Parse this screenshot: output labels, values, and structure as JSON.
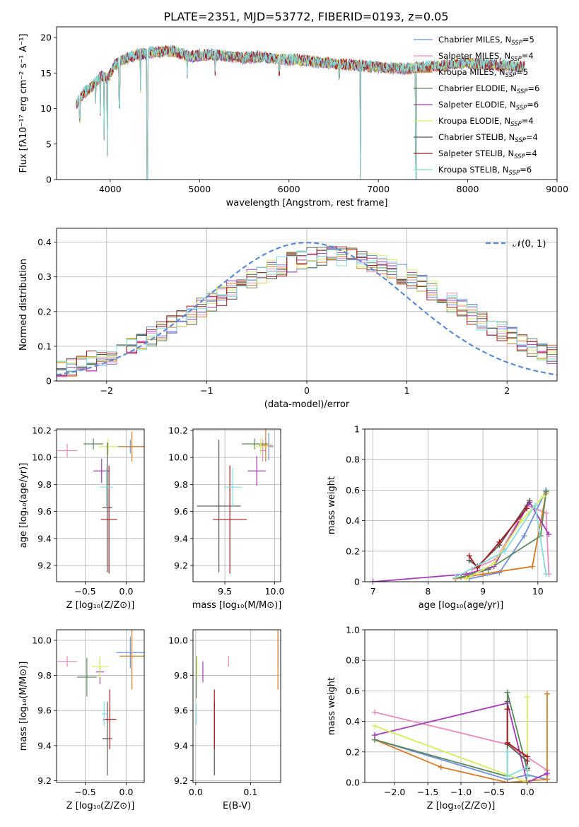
{
  "figure_title": "PLATE=2351, MJD=53772, FIBERID=0193, z=0.05",
  "colors": {
    "grid": "#b0b0b0"
  },
  "series_styles": [
    {
      "key": "chabrier_miles",
      "label_base": "Chabrier MILES, N",
      "n_ssp": "5",
      "color": "#6d8fdc"
    },
    {
      "key": "salpeter_miles",
      "label_base": "Salpeter MILES, N",
      "n_ssp": "4",
      "color": "#e98bbd"
    },
    {
      "key": "kroupa_miles",
      "label_base": "Kroupa MILES, N",
      "n_ssp": "5",
      "color": "#d97b22"
    },
    {
      "key": "chabrier_elodie",
      "label_base": "Chabrier ELODIE, N",
      "n_ssp": "6",
      "color": "#5a8a5a"
    },
    {
      "key": "salpeter_elodie",
      "label_base": "Salpeter ELODIE, N",
      "n_ssp": "6",
      "color": "#a43ab7"
    },
    {
      "key": "kroupa_elodie",
      "label_base": "Kroupa ELODIE, N",
      "n_ssp": "4",
      "color": "#d6ee5d"
    },
    {
      "key": "chabrier_stelib",
      "label_base": "Chabrier STELIB, N",
      "n_ssp": "4",
      "color": "#555555"
    },
    {
      "key": "salpeter_stelib",
      "label_base": "Salpeter STELIB, N",
      "n_ssp": "4",
      "color": "#a81a1a"
    },
    {
      "key": "kroupa_stelib",
      "label_base": "Kroupa STELIB, N",
      "n_ssp": "6",
      "color": "#83dcdc"
    }
  ],
  "legend_ssp_subscript": "SSP",
  "chart_data": [
    {
      "id": "spectrum",
      "type": "line",
      "xlabel": "wavelength [Angstrom, rest frame]",
      "ylabel": "Flux [fλ10⁻¹⁷ erg cm⁻² s⁻¹ A⁻¹]",
      "xlim": [
        3400,
        9000
      ],
      "ylim": [
        0,
        21.5
      ],
      "xticks": [
        4000,
        5000,
        6000,
        7000,
        8000,
        9000
      ],
      "yticks": [
        0,
        5,
        10,
        15,
        20
      ],
      "grid": false,
      "legend_position": "upper right",
      "x": [
        3620,
        3700,
        3800,
        3900,
        3970,
        4050,
        4150,
        4300,
        4500,
        4700,
        4900,
        5100,
        5300,
        5500,
        5700,
        5900,
        6100,
        6300,
        6500,
        6700,
        6900,
        7100,
        7300,
        7500,
        7700,
        7900,
        8100,
        8300,
        8500,
        8640
      ],
      "y": [
        10.5,
        12.0,
        13.0,
        14.5,
        14.0,
        16.0,
        16.8,
        17.5,
        17.8,
        18.0,
        17.2,
        17.5,
        17.3,
        17.0,
        17.2,
        16.8,
        16.7,
        16.5,
        16.2,
        16.0,
        15.8,
        15.6,
        15.5,
        15.7,
        15.9,
        16.3,
        16.2,
        16.0,
        15.8,
        15.7
      ],
      "absorption_lines": [
        {
          "x": 3660,
          "y": 8.5
        },
        {
          "x": 3835,
          "y": 11.0
        },
        {
          "x": 3889,
          "y": 9.5
        },
        {
          "x": 3933,
          "y": 6.0
        },
        {
          "x": 3968,
          "y": 3.5
        },
        {
          "x": 4102,
          "y": 10.5
        },
        {
          "x": 4340,
          "y": 12.5
        },
        {
          "x": 4415,
          "y": 0.0
        },
        {
          "x": 4861,
          "y": 14.5
        },
        {
          "x": 5175,
          "y": 15.0
        },
        {
          "x": 5890,
          "y": 15.0
        },
        {
          "x": 6563,
          "y": 14.5
        },
        {
          "x": 6800,
          "y": 0.0
        },
        {
          "x": 7420,
          "y": 0.0
        }
      ]
    },
    {
      "id": "residuals",
      "type": "bar",
      "xlabel": "(data-model)/error",
      "ylabel": "Normed distribution",
      "xlim": [
        -2.5,
        2.5
      ],
      "ylim": [
        0,
        0.44
      ],
      "xticks": [
        -2,
        -1,
        0,
        1,
        2
      ],
      "yticks": [
        0.0,
        0.1,
        0.2,
        0.3,
        0.4
      ],
      "grid": true,
      "legend_position": "upper right",
      "reference_label": "𝒩(0, 1)",
      "reference_color": "#5b8ad8",
      "bin_width": 0.1
    },
    {
      "id": "z_age",
      "type": "scatter",
      "xlabel": "Z [log₁₀(Z/Z⊙)]",
      "ylabel": "age  [log₁₀(age/yr)]",
      "xlim": [
        -0.85,
        0.22
      ],
      "ylim": [
        9.08,
        10.21
      ],
      "xticks": [
        -0.5,
        0.0
      ],
      "yticks": [
        9.2,
        9.4,
        9.6,
        9.8,
        10.0,
        10.2
      ],
      "grid": true,
      "points": [
        {
          "s": 0,
          "x": 0.05,
          "y": 10.08,
          "xe": 0.17,
          "ye": 0.05
        },
        {
          "s": 1,
          "x": -0.72,
          "y": 10.05,
          "xe": 0.12,
          "ye": 0.05
        },
        {
          "s": 2,
          "x": 0.07,
          "y": 10.08,
          "xe": 0.15,
          "ye": 0.11
        },
        {
          "s": 3,
          "x": -0.4,
          "y": 10.1,
          "xe": 0.12,
          "ye": 0.04
        },
        {
          "s": 4,
          "x": -0.3,
          "y": 9.9,
          "xe": 0.1,
          "ye": 0.09
        },
        {
          "s": 5,
          "x": -0.22,
          "y": 10.08,
          "xe": 0.12,
          "ye": 0.06
        },
        {
          "s": 6,
          "x": -0.23,
          "y": 9.63,
          "xe": 0.06,
          "ye": 0.48
        },
        {
          "s": 7,
          "x": -0.21,
          "y": 9.54,
          "xe": 0.1,
          "ye": 0.4
        },
        {
          "s": 8,
          "x": -0.24,
          "y": 9.78,
          "xe": 0.08,
          "ye": 0.14
        }
      ]
    },
    {
      "id": "mass_age",
      "type": "scatter",
      "xlabel": "mass [log₁₀(M/M⊙)]",
      "ylabel": "",
      "xlim": [
        9.18,
        10.06
      ],
      "ylim": [
        9.08,
        10.21
      ],
      "xticks": [
        9.5,
        10.0
      ],
      "yticks": [
        9.2,
        9.4,
        9.6,
        9.8,
        10.0,
        10.2
      ],
      "grid": true,
      "points": [
        {
          "s": 0,
          "x": 9.94,
          "y": 10.08,
          "xe": 0.05,
          "ye": 0.1
        },
        {
          "s": 1,
          "x": 9.88,
          "y": 10.05,
          "xe": 0.03,
          "ye": 0.08
        },
        {
          "s": 2,
          "x": 9.91,
          "y": 10.09,
          "xe": 0.07,
          "ye": 0.12
        },
        {
          "s": 3,
          "x": 9.8,
          "y": 10.1,
          "xe": 0.13,
          "ye": 0.04
        },
        {
          "s": 4,
          "x": 9.82,
          "y": 9.9,
          "xe": 0.09,
          "ye": 0.11
        },
        {
          "s": 5,
          "x": 9.86,
          "y": 10.08,
          "xe": 0.08,
          "ye": 0.06
        },
        {
          "s": 6,
          "x": 9.44,
          "y": 9.64,
          "xe": 0.22,
          "ye": 0.49
        },
        {
          "s": 7,
          "x": 9.55,
          "y": 9.54,
          "xe": 0.17,
          "ye": 0.4
        },
        {
          "s": 8,
          "x": 9.58,
          "y": 9.78,
          "xe": 0.09,
          "ye": 0.14
        }
      ]
    },
    {
      "id": "age_weight",
      "type": "line",
      "xlabel": "age  [log₁₀(age/yr)]",
      "ylabel": "mass weight",
      "xlim": [
        6.85,
        10.35
      ],
      "ylim": [
        0.0,
        1.0
      ],
      "xticks": [
        7,
        8,
        9,
        10
      ],
      "yticks": [
        0.0,
        0.2,
        0.4,
        0.6,
        0.8,
        1.0
      ],
      "grid": true,
      "series": [
        {
          "s": 0,
          "x": [
            8.75,
            9.3,
            9.75,
            10.15
          ],
          "y": [
            0.02,
            0.06,
            0.3,
            0.6
          ]
        },
        {
          "s": 1,
          "x": [
            8.8,
            9.25,
            9.8,
            10.15,
            10.2
          ],
          "y": [
            0.08,
            0.15,
            0.5,
            0.45,
            0.05
          ]
        },
        {
          "s": 2,
          "x": [
            8.5,
            9.0,
            9.9,
            10.15
          ],
          "y": [
            0.02,
            0.05,
            0.1,
            0.58
          ]
        },
        {
          "s": 3,
          "x": [
            8.6,
            9.1,
            10.05,
            10.15
          ],
          "y": [
            0.03,
            0.08,
            0.3,
            0.59
          ]
        },
        {
          "s": 4,
          "x": [
            7.0,
            8.7,
            9.2,
            9.85,
            10.2
          ],
          "y": [
            0.0,
            0.05,
            0.1,
            0.52,
            0.31
          ]
        },
        {
          "s": 5,
          "x": [
            8.7,
            9.2,
            9.7,
            10.1
          ],
          "y": [
            0.02,
            0.12,
            0.4,
            0.56
          ]
        },
        {
          "s": 6,
          "x": [
            8.75,
            8.9,
            9.3,
            9.85
          ],
          "y": [
            0.14,
            0.1,
            0.24,
            0.53
          ]
        },
        {
          "s": 7,
          "x": [
            8.75,
            8.9,
            9.3,
            9.8
          ],
          "y": [
            0.17,
            0.09,
            0.26,
            0.48
          ]
        },
        {
          "s": 8,
          "x": [
            8.5,
            9.4,
            9.95,
            10.15
          ],
          "y": [
            0.03,
            0.2,
            0.5,
            0.05
          ]
        }
      ]
    },
    {
      "id": "z_mass",
      "type": "scatter",
      "xlabel": "Z [log₁₀(Z/Z⊙)]",
      "ylabel": "mass [log₁₀(M/M⊙)]",
      "xlim": [
        -0.85,
        0.22
      ],
      "ylim": [
        9.19,
        10.06
      ],
      "xticks": [
        -0.5,
        0.0
      ],
      "yticks": [
        9.2,
        9.4,
        9.6,
        9.8,
        10.0
      ],
      "grid": true,
      "points": [
        {
          "s": 0,
          "x": 0.05,
          "y": 9.93,
          "xe": 0.17,
          "ye": 0.09
        },
        {
          "s": 1,
          "x": -0.72,
          "y": 9.88,
          "xe": 0.12,
          "ye": 0.03
        },
        {
          "s": 2,
          "x": 0.07,
          "y": 9.91,
          "xe": 0.15,
          "ye": 0.19
        },
        {
          "s": 3,
          "x": -0.48,
          "y": 9.79,
          "xe": 0.12,
          "ye": 0.11
        },
        {
          "s": 4,
          "x": -0.32,
          "y": 9.82,
          "xe": 0.05,
          "ye": 0.07
        },
        {
          "s": 5,
          "x": -0.32,
          "y": 9.85,
          "xe": 0.1,
          "ye": 0.06
        },
        {
          "s": 6,
          "x": -0.23,
          "y": 9.44,
          "xe": 0.06,
          "ye": 0.21
        },
        {
          "s": 7,
          "x": -0.2,
          "y": 9.55,
          "xe": 0.08,
          "ye": 0.17
        },
        {
          "s": 8,
          "x": -0.27,
          "y": 9.58,
          "xe": 0.03,
          "ye": 0.07
        }
      ]
    },
    {
      "id": "ebv_mass",
      "type": "scatter",
      "xlabel": "E(B-V)",
      "ylabel": "",
      "xlim": [
        -0.005,
        0.155
      ],
      "ylim": [
        9.19,
        10.06
      ],
      "xticks": [
        0.0,
        0.1
      ],
      "yticks": [
        9.2,
        9.4,
        9.6,
        9.8,
        10.0
      ],
      "grid": true,
      "points": [
        {
          "s": 0,
          "x": 0.15,
          "y": 9.94,
          "xe": 0,
          "ye": 0.09
        },
        {
          "s": 1,
          "x": 0.06,
          "y": 9.88,
          "xe": 0,
          "ye": 0.03
        },
        {
          "s": 2,
          "x": 0.15,
          "y": 9.91,
          "xe": 0,
          "ye": 0.19
        },
        {
          "s": 3,
          "x": 0.001,
          "y": 9.79,
          "xe": 0,
          "ye": 0.12
        },
        {
          "s": 4,
          "x": 0.013,
          "y": 9.82,
          "xe": 0,
          "ye": 0.06
        },
        {
          "s": 5,
          "x": 0.002,
          "y": 9.85,
          "xe": 0,
          "ye": 0.06
        },
        {
          "s": 6,
          "x": 0.034,
          "y": 9.44,
          "xe": 0,
          "ye": 0.21
        },
        {
          "s": 7,
          "x": 0.034,
          "y": 9.55,
          "xe": 0,
          "ye": 0.17
        },
        {
          "s": 8,
          "x": 0.001,
          "y": 9.58,
          "xe": 0,
          "ye": 0.06
        }
      ]
    },
    {
      "id": "z_weight",
      "type": "line",
      "xlabel": "Z [log₁₀(Z/Z⊙)]",
      "ylabel": "mass weight",
      "xlim": [
        -2.45,
        0.45
      ],
      "ylim": [
        0.0,
        1.0
      ],
      "xticks": [
        -2.0,
        -1.5,
        -1.0,
        -0.5,
        0.0
      ],
      "yticks": [
        0.0,
        0.2,
        0.4,
        0.6,
        0.8,
        1.0
      ],
      "grid": true,
      "series": [
        {
          "s": 0,
          "x": [
            -2.3,
            -0.3,
            0.0,
            0.3
          ],
          "y": [
            0.28,
            0.02,
            0.05,
            0.02
          ]
        },
        {
          "s": 1,
          "x": [
            -2.3,
            -0.3,
            0.3,
            0.3
          ],
          "y": [
            0.46,
            0.25,
            0.08,
            0.05
          ]
        },
        {
          "s": 2,
          "x": [
            -2.3,
            -1.3,
            -0.3,
            0.3,
            0.3
          ],
          "y": [
            0.28,
            0.1,
            0.0,
            0.02,
            0.58
          ]
        },
        {
          "s": 3,
          "x": [
            -2.3,
            -0.3,
            -0.3,
            0.0
          ],
          "y": [
            0.28,
            0.04,
            0.59,
            0.08
          ]
        },
        {
          "s": 4,
          "x": [
            -2.3,
            -0.3,
            0.0,
            0.3
          ],
          "y": [
            0.31,
            0.52,
            0.0,
            0.06
          ]
        },
        {
          "s": 5,
          "x": [
            -2.3,
            -0.3,
            0.0,
            0.0
          ],
          "y": [
            0.37,
            0.05,
            0.0,
            0.56
          ]
        },
        {
          "s": 6,
          "x": [
            -0.3,
            -0.3,
            0.0,
            0.0
          ],
          "y": [
            0.53,
            0.25,
            0.14,
            0.1
          ]
        },
        {
          "s": 7,
          "x": [
            -0.3,
            -0.3,
            0.0,
            0.0
          ],
          "y": [
            0.48,
            0.26,
            0.17,
            0.09
          ]
        },
        {
          "s": 8,
          "x": [
            -0.3,
            -0.3,
            0.0,
            0.0
          ],
          "y": [
            0.2,
            0.04,
            0.1,
            0.04
          ]
        }
      ]
    }
  ]
}
